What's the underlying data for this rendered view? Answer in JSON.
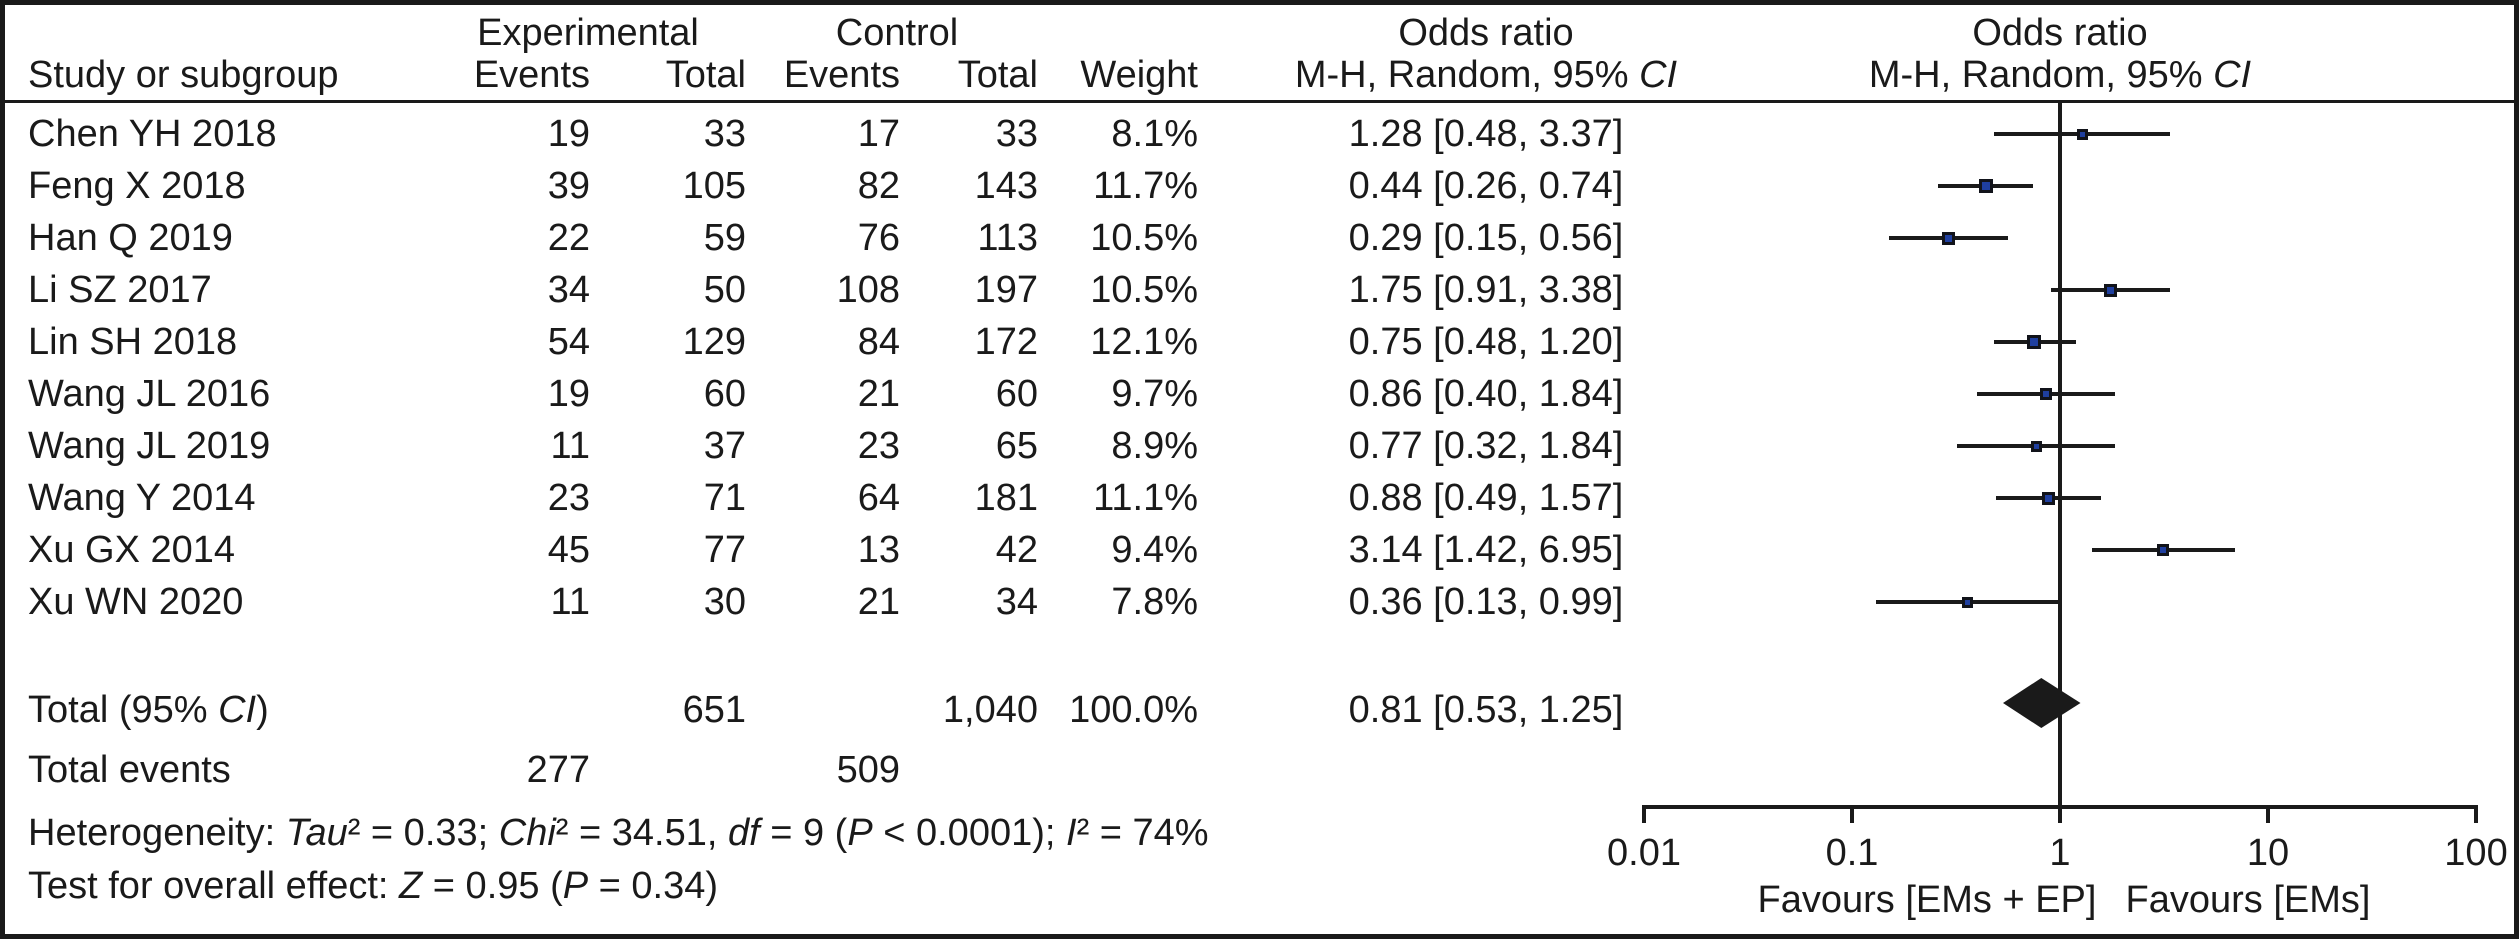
{
  "header": {
    "group_experimental": "Experimental",
    "group_control": "Control",
    "or_title": "Odds ratio",
    "col_study": "Study or subgroup",
    "col_events": "Events",
    "col_total": "Total",
    "col_weight": "Weight"
  },
  "text": {
    "mh_subtitle": [
      {
        "t": "M-H, Random, 95% "
      },
      {
        "t": "CI",
        "i": true
      }
    ],
    "total_label": [
      {
        "t": "Total (95% "
      },
      {
        "t": "CI",
        "i": true
      },
      {
        "t": ")"
      }
    ],
    "total_events_label": [
      {
        "t": "Total events"
      }
    ],
    "heterogeneity": [
      {
        "t": "Heterogeneity: "
      },
      {
        "t": "Tau",
        "i": true
      },
      {
        "t": "² = 0.33; "
      },
      {
        "t": "Chi",
        "i": true
      },
      {
        "t": "² = 34.51, "
      },
      {
        "t": "df",
        "i": true
      },
      {
        "t": " = 9 ("
      },
      {
        "t": "P",
        "i": true
      },
      {
        "t": " < 0.0001); "
      },
      {
        "t": "I",
        "i": true
      },
      {
        "t": "² = 74%"
      }
    ],
    "overall_effect": [
      {
        "t": "Test for overall effect: "
      },
      {
        "t": "Z",
        "i": true
      },
      {
        "t": " = 0.95 ("
      },
      {
        "t": "P",
        "i": true
      },
      {
        "t": " = 0.34)"
      }
    ]
  },
  "colors": {
    "marker_fill": "#1f3f9f",
    "marker_border": "#11131a",
    "line": "#1a1a1a",
    "diamond": "#1a1a1a",
    "text": "#1a1a1a"
  },
  "chart_data": {
    "type": "forest",
    "effect_measure": "Odds ratio, M-H, Random, 95% CI",
    "studies": [
      {
        "name": "Chen YH 2018",
        "events_exp": 19,
        "total_exp": 33,
        "events_ctrl": 17,
        "total_ctrl": 33,
        "weight_pct": 8.1,
        "weight_label": "8.1%",
        "or": 1.28,
        "ci_low": 0.48,
        "ci_high": 3.37,
        "or_label": "1.28 [0.48, 3.37]"
      },
      {
        "name": "Feng X 2018",
        "events_exp": 39,
        "total_exp": 105,
        "events_ctrl": 82,
        "total_ctrl": 143,
        "weight_pct": 11.7,
        "weight_label": "11.7%",
        "or": 0.44,
        "ci_low": 0.26,
        "ci_high": 0.74,
        "or_label": "0.44 [0.26, 0.74]"
      },
      {
        "name": "Han Q 2019",
        "events_exp": 22,
        "total_exp": 59,
        "events_ctrl": 76,
        "total_ctrl": 113,
        "weight_pct": 10.5,
        "weight_label": "10.5%",
        "or": 0.29,
        "ci_low": 0.15,
        "ci_high": 0.56,
        "or_label": "0.29 [0.15, 0.56]"
      },
      {
        "name": "Li SZ 2017",
        "events_exp": 34,
        "total_exp": 50,
        "events_ctrl": 108,
        "total_ctrl": 197,
        "weight_pct": 10.5,
        "weight_label": "10.5%",
        "or": 1.75,
        "ci_low": 0.91,
        "ci_high": 3.38,
        "or_label": "1.75 [0.91, 3.38]"
      },
      {
        "name": "Lin SH 2018",
        "events_exp": 54,
        "total_exp": 129,
        "events_ctrl": 84,
        "total_ctrl": 172,
        "weight_pct": 12.1,
        "weight_label": "12.1%",
        "or": 0.75,
        "ci_low": 0.48,
        "ci_high": 1.2,
        "or_label": "0.75 [0.48, 1.20]"
      },
      {
        "name": "Wang JL 2016",
        "events_exp": 19,
        "total_exp": 60,
        "events_ctrl": 21,
        "total_ctrl": 60,
        "weight_pct": 9.7,
        "weight_label": "9.7%",
        "or": 0.86,
        "ci_low": 0.4,
        "ci_high": 1.84,
        "or_label": "0.86 [0.40, 1.84]"
      },
      {
        "name": "Wang JL 2019",
        "events_exp": 11,
        "total_exp": 37,
        "events_ctrl": 23,
        "total_ctrl": 65,
        "weight_pct": 8.9,
        "weight_label": "8.9%",
        "or": 0.77,
        "ci_low": 0.32,
        "ci_high": 1.84,
        "or_label": "0.77 [0.32, 1.84]"
      },
      {
        "name": "Wang Y 2014",
        "events_exp": 23,
        "total_exp": 71,
        "events_ctrl": 64,
        "total_ctrl": 181,
        "weight_pct": 11.1,
        "weight_label": "11.1%",
        "or": 0.88,
        "ci_low": 0.49,
        "ci_high": 1.57,
        "or_label": "0.88 [0.49, 1.57]"
      },
      {
        "name": "Xu GX 2014",
        "events_exp": 45,
        "total_exp": 77,
        "events_ctrl": 13,
        "total_ctrl": 42,
        "weight_pct": 9.4,
        "weight_label": "9.4%",
        "or": 3.14,
        "ci_low": 1.42,
        "ci_high": 6.95,
        "or_label": "3.14 [1.42, 6.95]"
      },
      {
        "name": "Xu WN 2020",
        "events_exp": 11,
        "total_exp": 30,
        "events_ctrl": 21,
        "total_ctrl": 34,
        "weight_pct": 7.8,
        "weight_label": "7.8%",
        "or": 0.36,
        "ci_low": 0.13,
        "ci_high": 0.99,
        "or_label": "0.36 [0.13, 0.99]"
      }
    ],
    "total": {
      "total_exp_label": "651",
      "total_ctrl_label": "1,040",
      "weight_label": "100.0%",
      "or": 0.81,
      "ci_low": 0.53,
      "ci_high": 1.25,
      "or_label": "0.81 [0.53, 1.25]"
    },
    "total_events": {
      "exp": "277",
      "ctrl": "509"
    },
    "heterogeneity": {
      "tau2": 0.33,
      "chi2": 34.51,
      "df": 9,
      "p": "< 0.0001",
      "i2_pct": 74
    },
    "overall_effect": {
      "z": 0.95,
      "p": 0.34
    },
    "x_axis": {
      "scale": "log",
      "range": [
        0.01,
        100
      ],
      "ticks": [
        0.01,
        0.1,
        1,
        10,
        100
      ],
      "tick_labels": [
        "0.01",
        "0.1",
        "1",
        "10",
        "100"
      ],
      "favours_left": "Favours [EMs + EP]",
      "favours_right": "Favours [EMs]"
    }
  }
}
